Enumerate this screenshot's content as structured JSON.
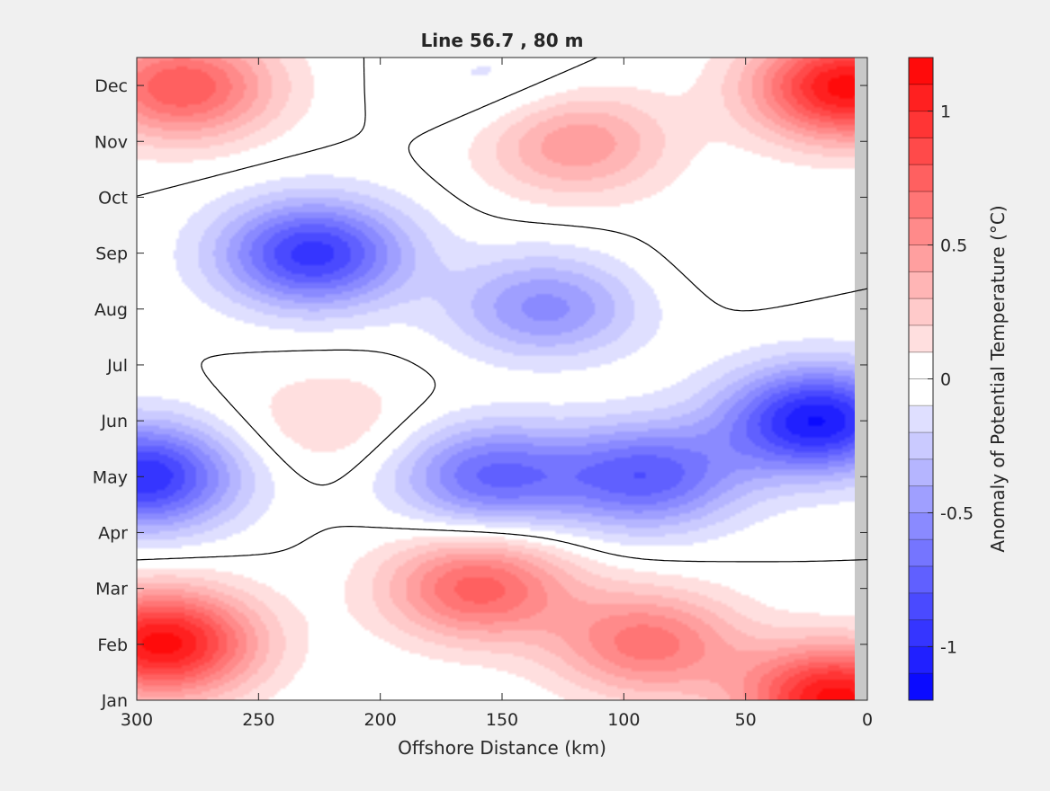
{
  "chart_data": {
    "type": "heatmap",
    "title": "Line 56.7 , 80 m",
    "xlabel": "Offshore Distance (km)",
    "xlim": [
      300,
      0
    ],
    "x_reversed": true,
    "x_ticks": [
      300,
      250,
      200,
      150,
      100,
      50,
      0
    ],
    "ylim": [
      "Jan",
      "Dec"
    ],
    "y_ticks": [
      "Jan",
      "Feb",
      "Mar",
      "Apr",
      "May",
      "Jun",
      "Jul",
      "Aug",
      "Sep",
      "Oct",
      "Nov",
      "Dec"
    ],
    "colorbar": {
      "label": "Anomaly of Potential Temperature (°C)",
      "range": [
        -1.2,
        1.2
      ],
      "step": 0.1,
      "ticks": [
        -1,
        -0.5,
        0,
        0.5,
        1
      ],
      "colormap": "blue-white-red",
      "colors": {
        "neg": "#0000ff",
        "zero": "#ffffff",
        "pos": "#ff0000"
      }
    },
    "contours": [
      0
    ],
    "grid": false,
    "shelf_mask_color": "#c8c8c8",
    "features": [
      {
        "x": 290,
        "y": "Feb",
        "value": 1.15
      },
      {
        "x": 160,
        "y": "Mar",
        "value": 0.75
      },
      {
        "x": 90,
        "y": "Feb",
        "value": 0.65
      },
      {
        "x": 12,
        "y": "Jan",
        "value": 1.15
      },
      {
        "x": 282,
        "y": "Dec",
        "value": 0.8
      },
      {
        "x": 8,
        "y": "Dec",
        "value": 1.15
      },
      {
        "x": 120,
        "y": "Nov",
        "value": 0.5
      },
      {
        "x": 228,
        "y": "Sep",
        "value": -0.95
      },
      {
        "x": 132,
        "y": "Aug",
        "value": -0.55
      },
      {
        "x": 298,
        "y": "May",
        "value": -1.0
      },
      {
        "x": 20,
        "y": "Jun",
        "value": -1.1
      },
      {
        "x": 90,
        "y": "May",
        "value": -0.75
      },
      {
        "x": 155,
        "y": "May",
        "value": -0.7
      },
      {
        "x": 222,
        "y": "Jun",
        "value": 0.2
      },
      {
        "x": 132,
        "y": "Jul",
        "value": 0.05
      },
      {
        "x": 65,
        "y": "Sep",
        "value": 0.05
      },
      {
        "x": 150,
        "y": "Dec",
        "value": -0.15
      }
    ]
  }
}
